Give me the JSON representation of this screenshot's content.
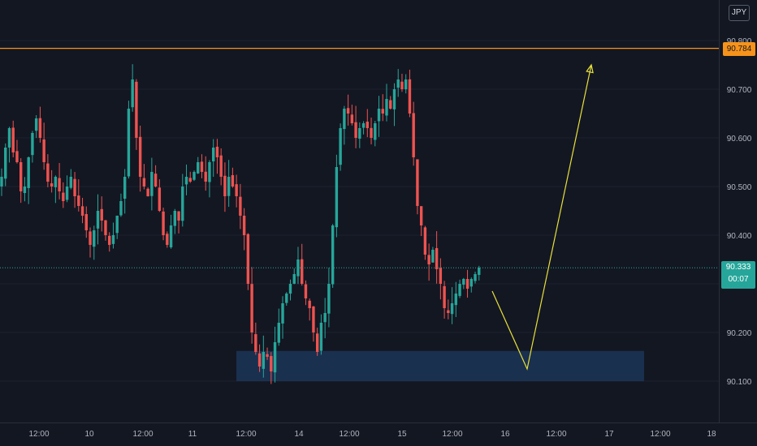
{
  "currency": "JPY",
  "chart_data": {
    "type": "candlestick",
    "price_axis": {
      "ticks": [
        "90.800",
        "90.700",
        "90.600",
        "90.500",
        "90.400",
        "90.300",
        "90.200",
        "90.100"
      ],
      "tick_values": [
        90.8,
        90.7,
        90.6,
        90.5,
        90.4,
        90.3,
        90.2,
        90.1
      ],
      "range": [
        90.07,
        90.83
      ]
    },
    "time_axis": {
      "labels": [
        "12:00",
        "10",
        "12:00",
        "11",
        "12:00",
        "14",
        "12:00",
        "15",
        "12:00",
        "16",
        "12:00",
        "17",
        "12:00",
        "18"
      ]
    },
    "resistance": {
      "price": 90.784,
      "label": "90.784",
      "color": "#f7931a"
    },
    "last_price": {
      "price": 90.333,
      "label": "90.333",
      "countdown": "00:07",
      "color": "#26a69a"
    },
    "support_zone": {
      "price_low": 90.1,
      "price_high": 90.162,
      "color": "#1e3a5f"
    },
    "projection": {
      "color": "#e8e13a",
      "points": [
        90.285,
        90.125,
        90.75
      ]
    },
    "colors": {
      "up": "#26a69a",
      "down": "#ef5350",
      "background": "#131722",
      "axis_text": "#b2b5be"
    },
    "closes": [
      90.52,
      90.58,
      90.62,
      90.57,
      90.55,
      90.49,
      90.5,
      90.56,
      90.61,
      90.64,
      90.6,
      90.55,
      90.51,
      90.5,
      90.52,
      90.49,
      90.47,
      90.5,
      90.52,
      90.48,
      90.46,
      90.44,
      90.41,
      90.38,
      90.41,
      90.45,
      90.43,
      90.4,
      90.38,
      90.4,
      90.44,
      90.47,
      90.52,
      90.66,
      90.72,
      90.6,
      90.52,
      90.5,
      90.48,
      90.53,
      90.5,
      90.45,
      90.4,
      90.38,
      90.42,
      90.45,
      90.43,
      90.5,
      90.52,
      90.51,
      90.53,
      90.55,
      90.53,
      90.51,
      90.55,
      90.58,
      90.56,
      90.52,
      90.48,
      90.52,
      90.5,
      90.48,
      90.44,
      90.4,
      90.3,
      90.2,
      90.16,
      90.13,
      90.16,
      90.15,
      90.12,
      90.18,
      90.22,
      90.26,
      90.28,
      90.3,
      90.32,
      90.35,
      90.3,
      90.27,
      90.25,
      90.2,
      90.16,
      90.22,
      90.24,
      90.3,
      90.42,
      90.54,
      90.62,
      90.66,
      90.65,
      90.63,
      90.6,
      90.62,
      90.63,
      90.62,
      90.6,
      90.63,
      90.66,
      90.65,
      90.68,
      90.66,
      90.7,
      90.72,
      90.7,
      90.72,
      90.65,
      90.56,
      90.46,
      90.42,
      90.36,
      90.34,
      90.37,
      90.33,
      90.3,
      90.25,
      90.24,
      90.26,
      90.28,
      90.3,
      90.31,
      90.29,
      90.31,
      90.32,
      90.333
    ]
  }
}
